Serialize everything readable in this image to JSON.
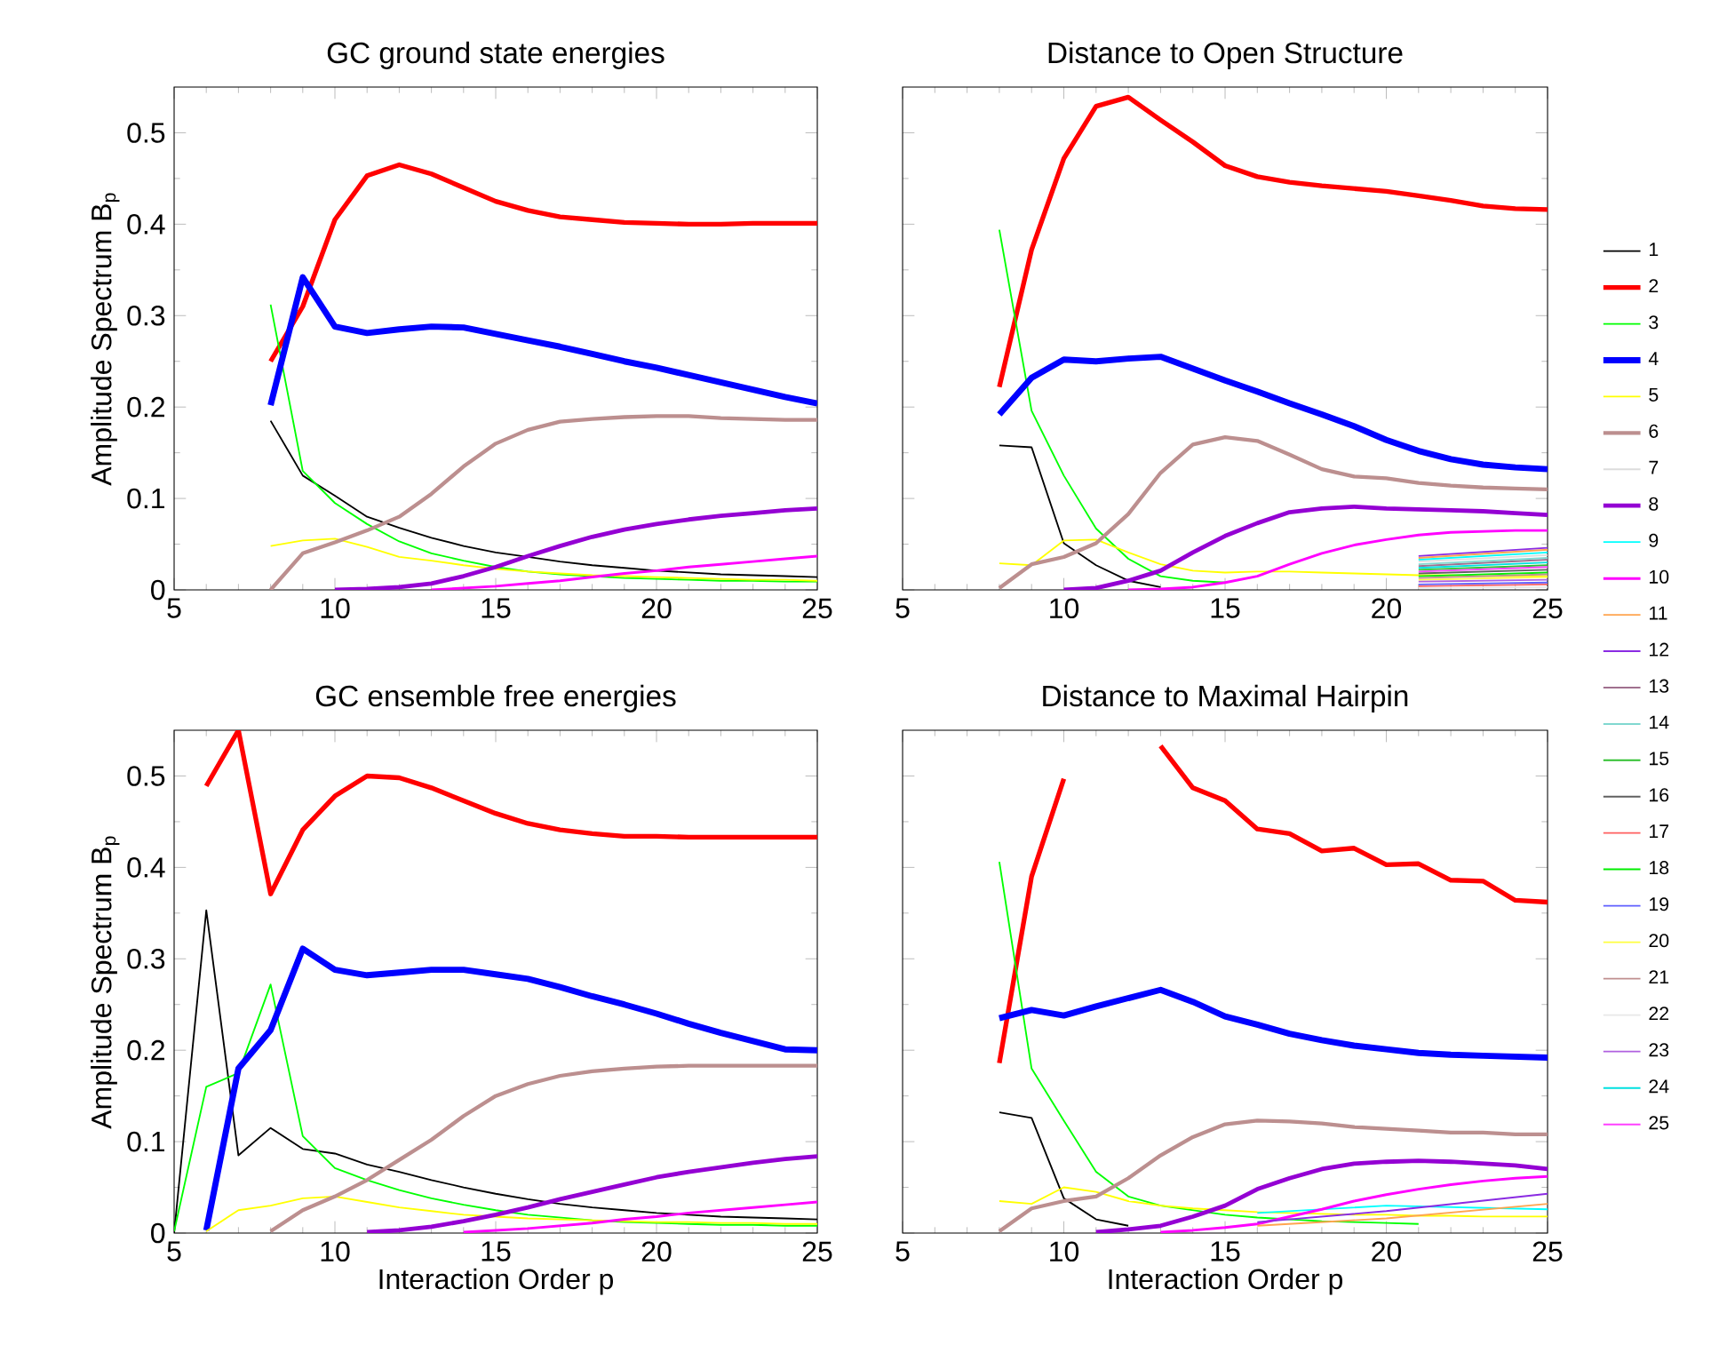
{
  "chart_data": [
    {
      "type": "line",
      "title": "GC ground state energies",
      "ylabel": "Amplitude Spectrum  B$_{p}$",
      "xlim": [
        5,
        25
      ],
      "ylim": [
        0,
        0.55
      ],
      "xticks": [
        5,
        10,
        15,
        20,
        25
      ],
      "yticks": [
        0,
        0.1,
        0.2,
        0.3,
        0.4,
        0.5
      ],
      "x": [
        8,
        9,
        10,
        11,
        12,
        13,
        14,
        15,
        16,
        17,
        18,
        19,
        20,
        21,
        22,
        23,
        24,
        25
      ],
      "series": [
        {
          "color": "#000000",
          "values": [
            0.185,
            0.125,
            0.103,
            0.08,
            0.068,
            0.057,
            0.048,
            0.041,
            0.036,
            0.031,
            0.027,
            0.024,
            0.021,
            0.019,
            0.017,
            0.016,
            0.015,
            0.014
          ]
        },
        {
          "color": "#ff0000",
          "values": [
            0.25,
            0.31,
            0.405,
            0.453,
            0.465,
            0.455,
            0.44,
            0.425,
            0.415,
            0.408,
            0.405,
            0.402,
            0.401,
            0.4,
            0.4,
            0.401,
            0.401,
            0.401
          ]
        },
        {
          "color": "#00ff00",
          "values": [
            0.312,
            0.13,
            0.095,
            0.072,
            0.053,
            0.04,
            0.032,
            0.025,
            0.02,
            0.017,
            0.015,
            0.013,
            0.012,
            0.011,
            0.01,
            0.01,
            0.009,
            0.009
          ]
        },
        {
          "color": "#0000ff",
          "values": [
            0.202,
            0.342,
            0.288,
            0.281,
            0.285,
            0.288,
            0.287,
            0.28,
            0.273,
            0.266,
            0.258,
            0.25,
            0.243,
            0.235,
            0.227,
            0.219,
            0.211,
            0.204
          ]
        },
        {
          "color": "#ffff00",
          "values": [
            0.048,
            0.054,
            0.056,
            0.047,
            0.036,
            0.032,
            0.027,
            0.023,
            0.02,
            0.018,
            0.016,
            0.015,
            0.014,
            0.013,
            0.012,
            0.011,
            0.011,
            0.01
          ]
        },
        {
          "color": "#bc8f8f",
          "values": [
            0,
            0.04,
            0.052,
            0.065,
            0.08,
            0.105,
            0.135,
            0.16,
            0.175,
            0.184,
            0.187,
            0.189,
            0.19,
            0.19,
            0.188,
            0.187,
            0.186,
            0.186
          ]
        },
        {
          "color": "#9400d3",
          "values": [
            null,
            null,
            0,
            0.001,
            0.003,
            0.007,
            0.015,
            0.025,
            0.037,
            0.048,
            0.058,
            0.066,
            0.072,
            0.077,
            0.081,
            0.084,
            0.087,
            0.089
          ]
        },
        {
          "color": "#ff00ff",
          "values": [
            null,
            null,
            null,
            null,
            null,
            0,
            0.002,
            0.004,
            0.007,
            0.01,
            0.014,
            0.018,
            0.021,
            0.025,
            0.028,
            0.031,
            0.034,
            0.037
          ]
        }
      ]
    },
    {
      "type": "line",
      "title": "Distance to Open Structure",
      "xlim": [
        5,
        25
      ],
      "ylim": [
        0,
        0.55
      ],
      "xticks": [
        5,
        10,
        15,
        20,
        25
      ],
      "yticks": [
        0,
        0.1,
        0.2,
        0.3,
        0.4,
        0.5
      ],
      "tick_labels": "x",
      "legend": "right",
      "x": [
        8,
        9,
        10,
        11,
        12,
        13,
        14,
        15,
        16,
        17,
        18,
        19,
        20,
        21,
        22,
        23,
        24,
        25
      ],
      "series": [
        {
          "name": "1",
          "color": "#000000",
          "values": [
            0.158,
            0.156,
            0.051,
            0.027,
            0.01,
            0.003,
            null,
            null,
            null,
            null,
            null,
            null,
            null,
            null,
            null,
            null,
            null,
            null
          ]
        },
        {
          "name": "2",
          "color": "#ff0000",
          "values": [
            0.222,
            0.372,
            0.472,
            0.529,
            0.539,
            0.514,
            0.49,
            0.464,
            0.452,
            0.446,
            0.442,
            0.439,
            0.436,
            0.431,
            0.426,
            0.42,
            0.417,
            0.416
          ]
        },
        {
          "name": "3",
          "color": "#00ff00",
          "values": [
            0.394,
            0.196,
            0.125,
            0.067,
            0.034,
            0.015,
            0.01,
            0.008,
            null,
            null,
            null,
            null,
            null,
            null,
            null,
            null,
            null,
            null
          ]
        },
        {
          "name": "4",
          "color": "#0000ff",
          "values": [
            0.192,
            0.232,
            0.252,
            0.25,
            0.253,
            0.255,
            0.242,
            0.229,
            0.217,
            0.204,
            0.192,
            0.179,
            0.164,
            0.152,
            0.143,
            0.137,
            0.134,
            0.132
          ]
        },
        {
          "name": "5",
          "color": "#ffff00",
          "values": [
            0.029,
            0.027,
            0.054,
            0.055,
            0.041,
            0.028,
            0.021,
            0.019,
            0.02,
            0.02,
            0.019,
            0.018,
            0.017,
            0.016,
            0.016,
            0.015,
            0.015,
            0.015
          ]
        },
        {
          "name": "6",
          "color": "#bc8f8f",
          "values": [
            0.002,
            0.028,
            0.036,
            0.051,
            0.083,
            0.128,
            0.159,
            0.167,
            0.163,
            0.148,
            0.132,
            0.124,
            0.122,
            0.117,
            0.114,
            0.112,
            0.111,
            0.11
          ]
        },
        {
          "name": "7",
          "color": "#dcdcdc",
          "x": [
            21,
            25
          ],
          "values": [
            0.031,
            0.038
          ]
        },
        {
          "name": "8",
          "color": "#9400d3",
          "values": [
            null,
            null,
            0,
            0.002,
            0.01,
            0.021,
            0.041,
            0.059,
            0.073,
            0.085,
            0.089,
            0.091,
            0.089,
            0.088,
            0.087,
            0.086,
            0.084,
            0.082
          ]
        },
        {
          "name": "9",
          "color": "#00ffff",
          "x": [
            21,
            25
          ],
          "values": [
            0.033,
            0.041
          ]
        },
        {
          "name": "10",
          "color": "#ff00ff",
          "values": [
            null,
            null,
            null,
            null,
            0,
            0.001,
            0.003,
            0.008,
            0.015,
            0.028,
            0.04,
            0.049,
            0.055,
            0.06,
            0.063,
            0.064,
            0.065,
            0.065
          ]
        },
        {
          "name": "11",
          "color": "#ffa54f",
          "x": [
            21,
            25
          ],
          "values": [
            0.035,
            0.044
          ]
        },
        {
          "name": "12",
          "color": "#8a2be2",
          "x": [
            21,
            25
          ],
          "values": [
            0.037,
            0.046
          ]
        },
        {
          "name": "13",
          "color": "#a0708f",
          "x": [
            21,
            25
          ],
          "values": [
            0.026,
            0.033
          ]
        },
        {
          "name": "14",
          "color": "#80d8d0",
          "x": [
            21,
            25
          ],
          "values": [
            0.028,
            0.035
          ]
        },
        {
          "name": "15",
          "color": "#30c030",
          "x": [
            21,
            25
          ],
          "values": [
            0.022,
            0.027
          ]
        },
        {
          "name": "16",
          "color": "#606060",
          "x": [
            21,
            25
          ],
          "values": [
            0.018,
            0.022
          ]
        },
        {
          "name": "17",
          "color": "#ff6060",
          "x": [
            21,
            25
          ],
          "values": [
            0.004,
            0.006
          ]
        },
        {
          "name": "18",
          "color": "#00ee00",
          "x": [
            21,
            25
          ],
          "values": [
            0.015,
            0.019
          ]
        },
        {
          "name": "19",
          "color": "#6060ff",
          "x": [
            21,
            25
          ],
          "values": [
            0.006,
            0.008
          ]
        },
        {
          "name": "20",
          "color": "#ffff40",
          "x": [
            21,
            25
          ],
          "values": [
            0.011,
            0.014
          ]
        },
        {
          "name": "21",
          "color": "#c09090",
          "x": [
            21,
            25
          ],
          "values": [
            0.013,
            0.017
          ]
        },
        {
          "name": "22",
          "color": "#e8e8e8",
          "x": [
            21,
            25
          ],
          "values": [
            0.002,
            0.003
          ]
        },
        {
          "name": "23",
          "color": "#b060e0",
          "x": [
            21,
            25
          ],
          "values": [
            0.009,
            0.011
          ]
        },
        {
          "name": "24",
          "color": "#00e0e0",
          "x": [
            21,
            25
          ],
          "values": [
            0.024,
            0.03
          ]
        },
        {
          "name": "25",
          "color": "#ff40ff",
          "x": [
            21,
            25
          ],
          "values": [
            0.02,
            0.025
          ]
        }
      ]
    },
    {
      "type": "line",
      "title": "GC  ensemble free energies",
      "ylabel": "Amplitude Spectrum  B$_{p}$",
      "xlabel": "Interaction Order    p",
      "xlim": [
        5,
        25
      ],
      "ylim": [
        0,
        0.55
      ],
      "xticks": [
        5,
        10,
        15,
        20,
        25
      ],
      "yticks": [
        0,
        0.1,
        0.2,
        0.3,
        0.4,
        0.5
      ],
      "x": [
        5,
        6,
        7,
        8,
        9,
        10,
        11,
        12,
        13,
        14,
        15,
        16,
        17,
        18,
        19,
        20,
        21,
        22,
        23,
        24,
        25
      ],
      "series": [
        {
          "color": "#000000",
          "values": [
            0,
            0.353,
            0.085,
            0.115,
            0.092,
            0.087,
            0.075,
            0.067,
            0.058,
            0.05,
            0.043,
            0.037,
            0.032,
            0.028,
            0.025,
            0.022,
            0.02,
            0.018,
            0.017,
            0.016,
            0.015
          ]
        },
        {
          "color": "#ff0000",
          "values": [
            null,
            0.489,
            0.55,
            0.371,
            0.441,
            0.478,
            0.5,
            0.498,
            0.487,
            0.473,
            0.459,
            0.448,
            0.441,
            0.437,
            0.434,
            0.434,
            0.433,
            0.433,
            0.433,
            0.433,
            0.433
          ]
        },
        {
          "color": "#00ff00",
          "values": [
            0.002,
            0.16,
            0.175,
            0.272,
            0.106,
            0.071,
            0.058,
            0.047,
            0.038,
            0.031,
            0.025,
            0.02,
            0.017,
            0.014,
            0.012,
            0.011,
            0.01,
            0.009,
            0.009,
            0.008,
            0.008
          ]
        },
        {
          "color": "#0000ff",
          "values": [
            null,
            0.003,
            0.18,
            0.222,
            0.311,
            0.288,
            0.282,
            0.285,
            0.288,
            0.288,
            0.283,
            0.278,
            0.269,
            0.259,
            0.25,
            0.24,
            0.229,
            0.219,
            0.21,
            0.201,
            0.2
          ]
        },
        {
          "color": "#ffff00",
          "values": [
            null,
            0.002,
            0.025,
            0.03,
            0.038,
            0.04,
            0.034,
            0.028,
            0.024,
            0.02,
            0.018,
            0.016,
            0.015,
            0.014,
            0.013,
            0.012,
            0.012,
            0.011,
            0.011,
            0.01,
            0.01
          ]
        },
        {
          "color": "#bc8f8f",
          "values": [
            null,
            null,
            null,
            0.002,
            0.025,
            0.04,
            0.058,
            0.08,
            0.102,
            0.128,
            0.15,
            0.163,
            0.172,
            0.177,
            0.18,
            0.182,
            0.183,
            0.183,
            0.183,
            0.183,
            0.183
          ]
        },
        {
          "color": "#9400d3",
          "values": [
            null,
            null,
            null,
            null,
            null,
            null,
            0.001,
            0.003,
            0.007,
            0.013,
            0.02,
            0.028,
            0.037,
            0.045,
            0.053,
            0.061,
            0.067,
            0.072,
            0.077,
            0.081,
            0.084
          ]
        },
        {
          "color": "#ff00ff",
          "values": [
            null,
            null,
            null,
            null,
            null,
            null,
            null,
            null,
            null,
            0.001,
            0.003,
            0.005,
            0.008,
            0.011,
            0.015,
            0.018,
            0.022,
            0.025,
            0.028,
            0.031,
            0.034
          ]
        }
      ]
    },
    {
      "type": "line",
      "title": "Distance to Maximal Hairpin",
      "xlabel": "Interaction Order    p",
      "xlim": [
        5,
        25
      ],
      "ylim": [
        0,
        0.55
      ],
      "xticks": [
        5,
        10,
        15,
        20,
        25
      ],
      "yticks": [
        0,
        0.1,
        0.2,
        0.3,
        0.4,
        0.5
      ],
      "tick_labels": "x",
      "x": [
        8,
        9,
        10,
        11,
        12,
        13,
        14,
        15,
        16,
        17,
        18,
        19,
        20,
        21,
        22,
        23,
        24,
        25
      ],
      "series": [
        {
          "color": "#000000",
          "values": [
            0.132,
            0.126,
            0.038,
            0.015,
            0.008,
            null,
            null,
            null,
            null,
            null,
            null,
            null,
            null,
            null,
            null,
            null,
            null,
            null
          ]
        },
        {
          "color": "#ff0000",
          "values": [
            0.186,
            0.39,
            0.497,
            null,
            null,
            0.533,
            0.487,
            0.473,
            0.442,
            0.437,
            0.418,
            0.421,
            0.403,
            0.404,
            0.386,
            0.385,
            0.364,
            0.362
          ]
        },
        {
          "color": "#00ff00",
          "values": [
            0.406,
            0.18,
            0.123,
            0.067,
            0.04,
            0.03,
            0.025,
            0.02,
            0.017,
            0.015,
            0.013,
            0.012,
            0.011,
            0.01,
            null,
            null,
            null,
            null
          ]
        },
        {
          "color": "#0000ff",
          "values": [
            0.235,
            0.244,
            0.238,
            0.248,
            0.257,
            0.266,
            0.253,
            0.237,
            0.228,
            0.218,
            0.211,
            0.205,
            0.201,
            0.197,
            0.195,
            0.194,
            0.193,
            0.192
          ]
        },
        {
          "color": "#ffff00",
          "values": [
            0.035,
            0.032,
            0.05,
            0.045,
            0.035,
            0.03,
            0.027,
            0.025,
            0.023,
            0.022,
            0.021,
            0.02,
            0.02,
            0.019,
            0.019,
            0.018,
            0.018,
            0.018
          ]
        },
        {
          "color": "#bc8f8f",
          "values": [
            0.002,
            0.027,
            0.035,
            0.04,
            0.06,
            0.085,
            0.105,
            0.119,
            0.123,
            0.122,
            0.12,
            0.116,
            0.114,
            0.112,
            0.11,
            0.11,
            0.108,
            0.108
          ]
        },
        {
          "color": "#00ffff",
          "x": [
            16,
            20,
            25
          ],
          "values": [
            0.022,
            0.03,
            0.026
          ]
        },
        {
          "color": "#9400d3",
          "values": [
            null,
            null,
            null,
            0.001,
            0.004,
            0.008,
            0.018,
            0.03,
            0.048,
            0.06,
            0.07,
            0.076,
            0.078,
            0.079,
            0.078,
            0.076,
            0.074,
            0.07
          ]
        },
        {
          "color": "#ff00ff",
          "values": [
            null,
            null,
            null,
            null,
            null,
            0.001,
            0.003,
            0.006,
            0.01,
            0.018,
            0.026,
            0.035,
            0.042,
            0.048,
            0.053,
            0.057,
            0.06,
            0.062
          ]
        },
        {
          "color": "#ffa54f",
          "x": [
            16,
            20,
            25
          ],
          "values": [
            0.008,
            0.016,
            0.032
          ]
        },
        {
          "color": "#8a2be2",
          "x": [
            16,
            20,
            25
          ],
          "values": [
            0.012,
            0.024,
            0.043
          ]
        }
      ]
    }
  ]
}
